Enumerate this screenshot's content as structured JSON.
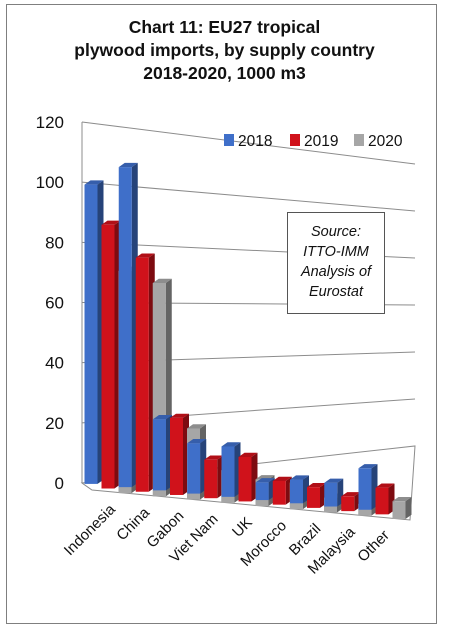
{
  "title_lines": [
    "Chart 11: EU27 tropical",
    "plywood imports, by supply country",
    "2018-2020, 1000 m3"
  ],
  "source_lines": [
    "Source:",
    "ITTO-IMM",
    "Analysis of",
    "Eurostat"
  ],
  "colors": {
    "2018": "#3f6fc9",
    "2019": "#d0121b",
    "2020": "#a6a6a6"
  },
  "chart_data": {
    "type": "bar",
    "title": "Chart 11: EU27 tropical plywood imports, by supply country 2018-2020, 1000 m3",
    "categories": [
      "Indonesia",
      "China",
      "Gabon",
      "Viet Nam",
      "UK",
      "Morocco",
      "Brazil",
      "Malaysia",
      "Other"
    ],
    "series": [
      {
        "name": "2018",
        "values": [
          101,
          108,
          24,
          17,
          17,
          6,
          8,
          8,
          14
        ]
      },
      {
        "name": "2019",
        "values": [
          89,
          79,
          26,
          13,
          15,
          8,
          7,
          5,
          9
        ]
      },
      {
        "name": "2020",
        "values": [
          75,
          72,
          24,
          11,
          9,
          9,
          5,
          4,
          6
        ]
      }
    ],
    "yticks": [
      0,
      20,
      40,
      60,
      80,
      100,
      120
    ],
    "ylim": [
      0,
      120
    ],
    "grid": true,
    "legend": "top-right"
  }
}
